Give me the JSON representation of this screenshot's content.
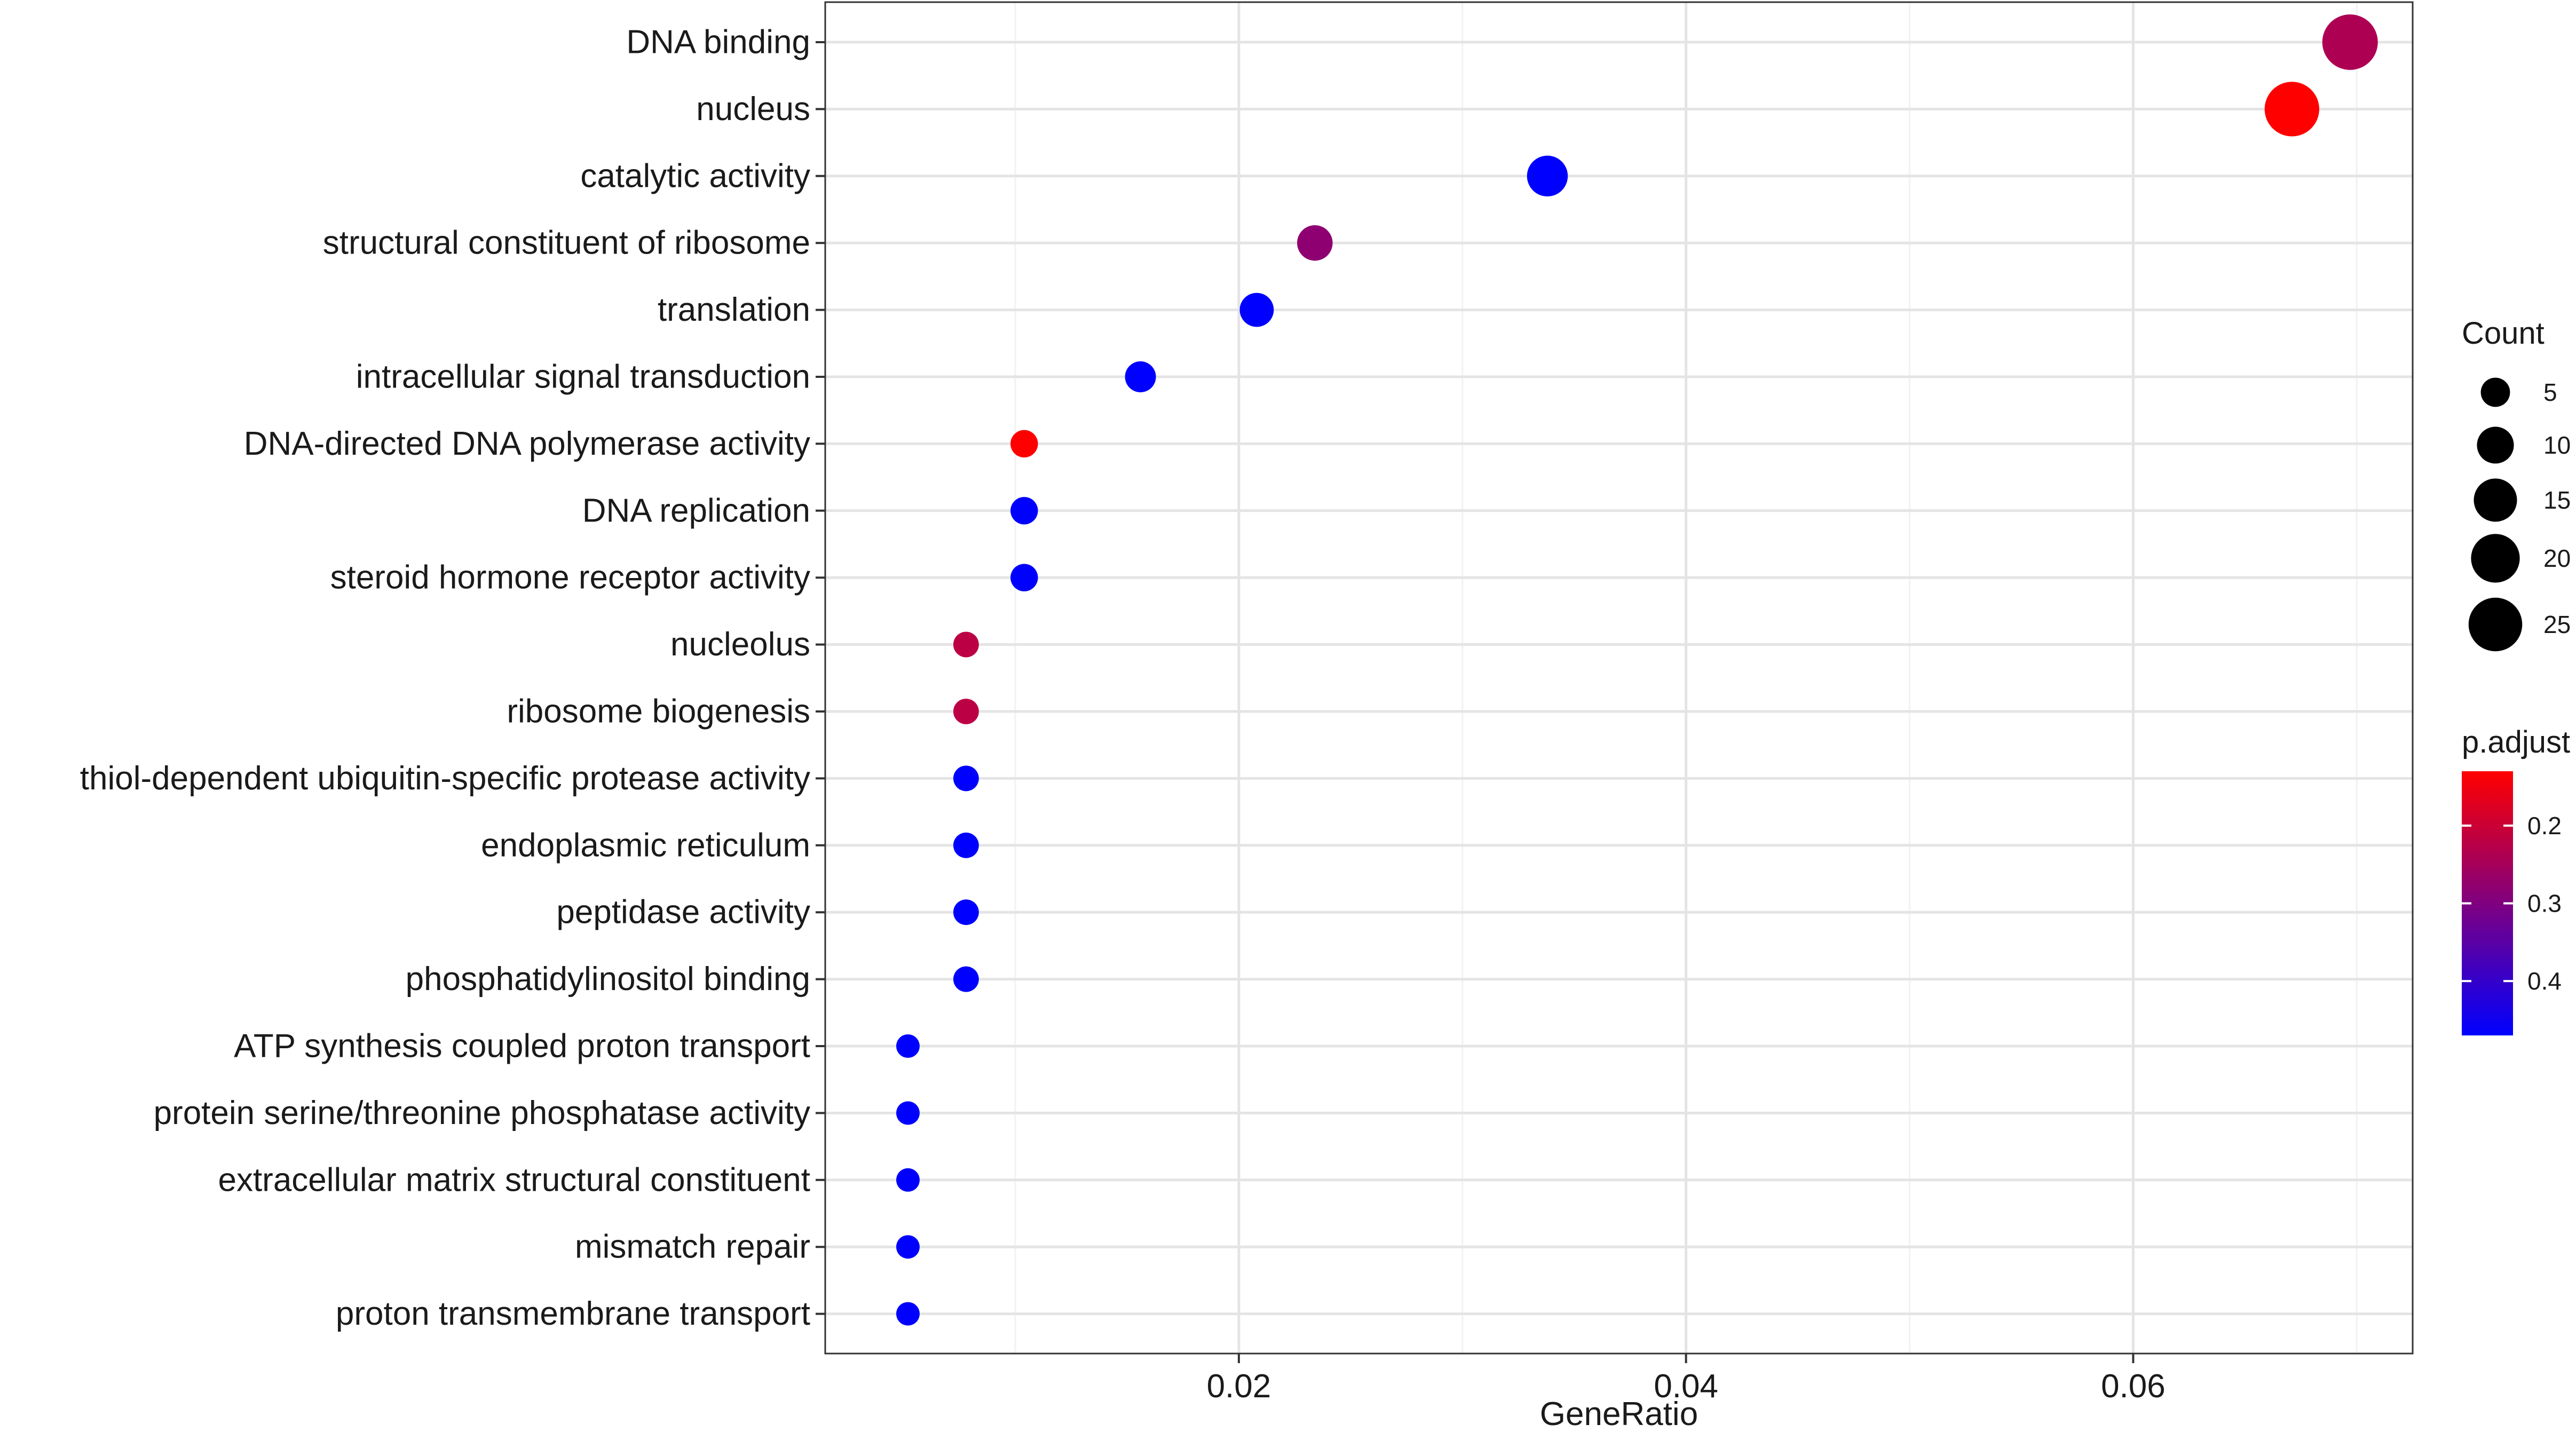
{
  "chart_data": {
    "type": "scatter",
    "title": "",
    "xlabel": "GeneRatio",
    "ylabel": "",
    "xlim": [
      0.0015,
      0.0725
    ],
    "x_ticks": [
      0.02,
      0.04,
      0.06
    ],
    "x_tick_labels": [
      "0.02",
      "0.04",
      "0.06"
    ],
    "grid": true,
    "categories": [
      "DNA binding",
      "nucleus",
      "catalytic activity",
      "structural constituent of ribosome",
      "translation",
      "intracellular signal transduction",
      "DNA-directed DNA polymerase activity",
      "DNA replication",
      "steroid hormone receptor activity",
      "nucleolus",
      "ribosome biogenesis",
      "thiol-dependent ubiquitin-specific protease activity",
      "endoplasmic reticulum",
      "peptidase activity",
      "phosphatidylinositol binding",
      "ATP synthesis coupled proton transport",
      "protein serine/threonine phosphatase activity",
      "extracellular matrix structural constituent",
      "mismatch repair",
      "proton transmembrane transport"
    ],
    "gene_ratio": [
      0.0697,
      0.0671,
      0.0338,
      0.0234,
      0.0208,
      0.0156,
      0.0104,
      0.0104,
      0.0104,
      0.0078,
      0.0078,
      0.0078,
      0.0078,
      0.0078,
      0.0078,
      0.0052,
      0.0052,
      0.0052,
      0.0052,
      0.0052
    ],
    "count": [
      27,
      26,
      13,
      9,
      8,
      6,
      4,
      4,
      4,
      3,
      3,
      3,
      3,
      3,
      3,
      2,
      2,
      2,
      2,
      2
    ],
    "p_adjust": [
      0.24,
      0.13,
      0.47,
      0.28,
      0.47,
      0.47,
      0.13,
      0.47,
      0.47,
      0.22,
      0.22,
      0.47,
      0.47,
      0.47,
      0.47,
      0.47,
      0.47,
      0.47,
      0.47,
      0.47
    ],
    "legend": {
      "size_title": "Count",
      "size_values": [
        5,
        10,
        15,
        20,
        25
      ],
      "size_labels": [
        "5",
        "10",
        "15",
        "20",
        "25"
      ],
      "color_title": "p.adjust",
      "color_range": [
        0.13,
        0.47
      ],
      "color_ticks": [
        0.2,
        0.3,
        0.4
      ],
      "color_tick_labels": [
        "0.2",
        "0.3",
        "0.4"
      ],
      "color_low": "#FF0000",
      "color_high": "#0000FF",
      "placement": "right"
    }
  }
}
